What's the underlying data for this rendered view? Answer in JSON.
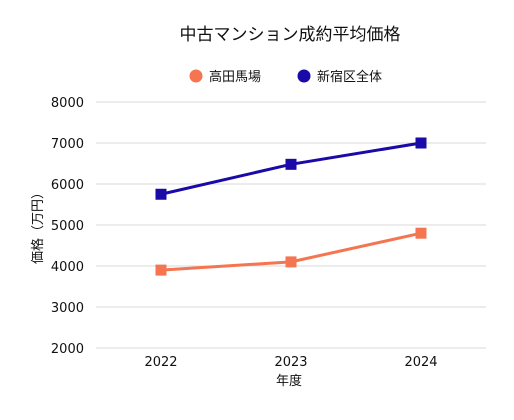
{
  "chart_data": {
    "type": "line",
    "title": "中古マンション成約平均価格",
    "xlabel": "年度",
    "ylabel": "価格（万円）",
    "categories": [
      "2022",
      "2023",
      "2024"
    ],
    "ylim": [
      2000,
      8000
    ],
    "yticks": [
      "2000",
      "3000",
      "4000",
      "5000",
      "6000",
      "7000",
      "8000"
    ],
    "grid": true,
    "legend_position": "top-center",
    "series": [
      {
        "name": "高田馬場",
        "values": [
          3900,
          4100,
          4800
        ],
        "color": "#f47550",
        "marker": "square"
      },
      {
        "name": "新宿区全体",
        "values": [
          5750,
          6480,
          7000
        ],
        "color": "#1a0aa7",
        "marker": "square"
      }
    ]
  }
}
